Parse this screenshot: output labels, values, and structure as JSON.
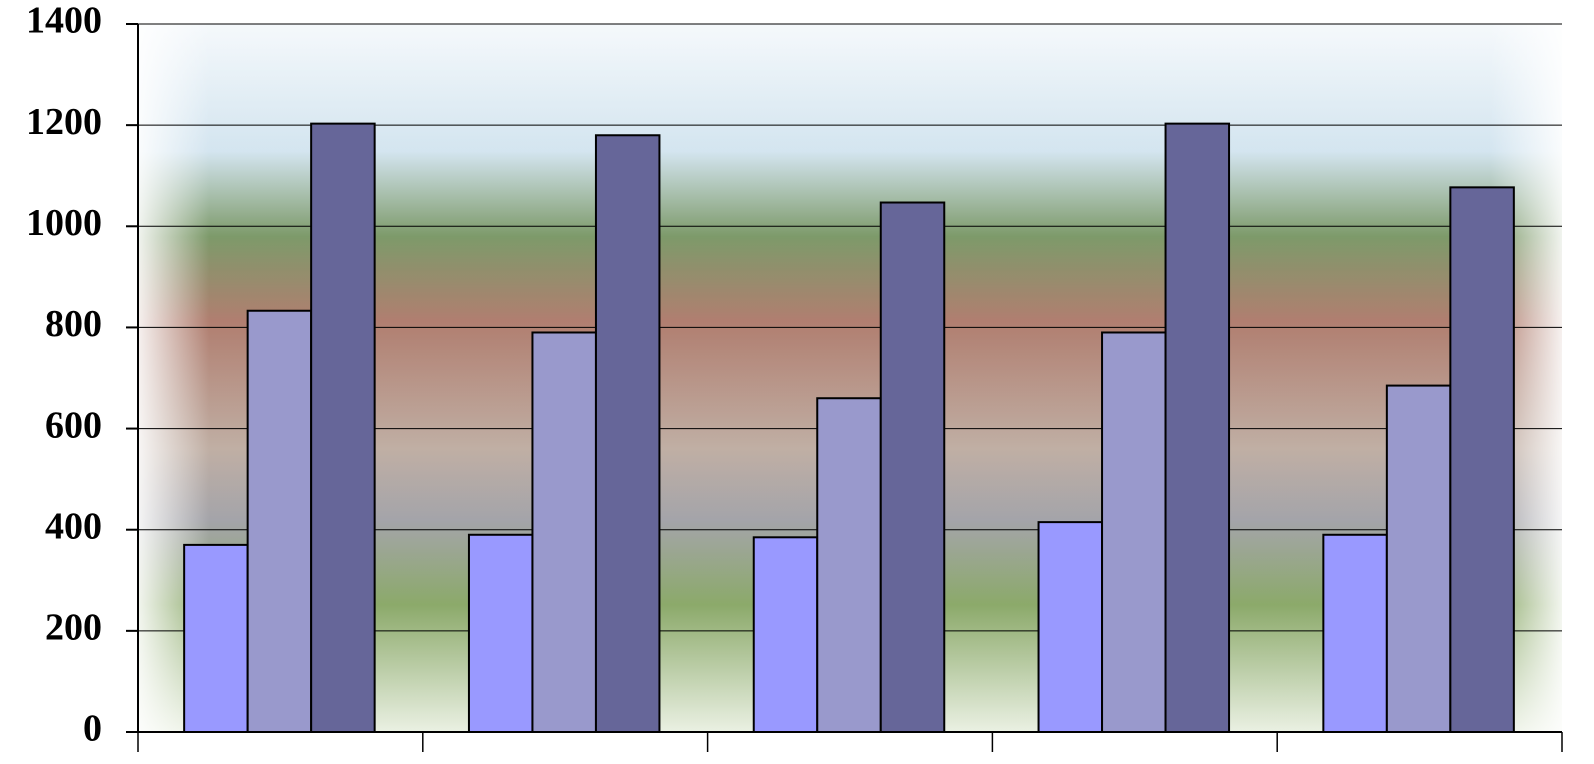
{
  "chart_data": {
    "type": "bar",
    "categories": [
      null,
      null,
      null,
      null,
      null
    ],
    "series": [
      {
        "color": "#9999ff",
        "values": [
          370,
          390,
          385,
          415,
          390
        ]
      },
      {
        "color": "#9999cc",
        "values": [
          833,
          790,
          660,
          790,
          685
        ]
      },
      {
        "color": "#666699",
        "values": [
          1203,
          1180,
          1047,
          1203,
          1077
        ]
      }
    ],
    "ylim": [
      0,
      1400
    ],
    "yticks": [
      0,
      200,
      400,
      600,
      800,
      1000,
      1200,
      1400
    ],
    "grid": true
  }
}
